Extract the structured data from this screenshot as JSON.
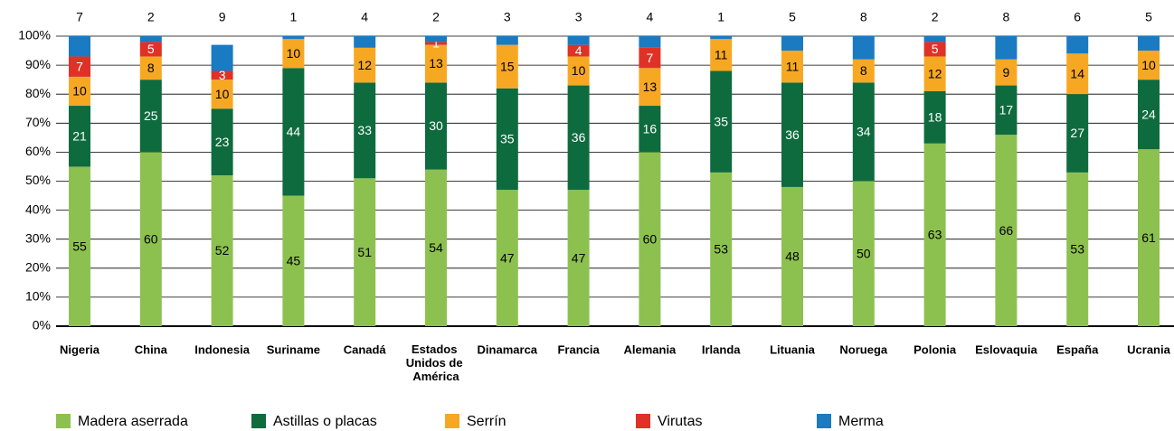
{
  "chart_data": {
    "type": "stacked_bar",
    "categories": [
      "Nigeria",
      "China",
      "Indonesia",
      "Suriname",
      "Canadá",
      "Estados Unidos de América",
      "Dinamarca",
      "Francia",
      "Alemania",
      "Irlanda",
      "Lituania",
      "Noruega",
      "Polonia",
      "Eslovaquia",
      "España",
      "Ucrania"
    ],
    "series": [
      {
        "name": "Madera aserrada",
        "color": "#8dc14f",
        "values": [
          55,
          60,
          52,
          45,
          51,
          54,
          47,
          47,
          60,
          53,
          48,
          50,
          63,
          66,
          53,
          61
        ]
      },
      {
        "name": "Astillas o placas",
        "color": "#0e6b3e",
        "values": [
          21,
          25,
          23,
          44,
          33,
          30,
          35,
          36,
          16,
          35,
          36,
          34,
          18,
          17,
          27,
          24
        ]
      },
      {
        "name": "Serrín",
        "color": "#f7a823",
        "values": [
          10,
          8,
          10,
          10,
          12,
          13,
          15,
          10,
          13,
          11,
          11,
          8,
          12,
          9,
          14,
          10
        ]
      },
      {
        "name": "Virutas",
        "color": "#e03127",
        "values": [
          7,
          5,
          3,
          null,
          null,
          1,
          null,
          4,
          7,
          null,
          null,
          null,
          5,
          null,
          null,
          null
        ]
      },
      {
        "name": "Merma",
        "color": "#1a7ac2",
        "values": [
          7,
          2,
          9,
          1,
          4,
          2,
          3,
          3,
          4,
          1,
          5,
          8,
          2,
          8,
          6,
          5
        ]
      }
    ],
    "ylim": [
      0,
      100
    ],
    "yticks": [
      {
        "value": 0,
        "label": "0%"
      },
      {
        "value": 10,
        "label": "10%"
      },
      {
        "value": 20,
        "label": "20%"
      },
      {
        "value": 30,
        "label": "30%"
      },
      {
        "value": 40,
        "label": "40%"
      },
      {
        "value": 50,
        "label": "50%"
      },
      {
        "value": 60,
        "label": "60%"
      },
      {
        "value": 70,
        "label": "70%"
      },
      {
        "value": 80,
        "label": "80%"
      },
      {
        "value": 90,
        "label": "90%"
      },
      {
        "value": 100,
        "label": "100%"
      }
    ],
    "grid": true,
    "legend": "bottom"
  }
}
